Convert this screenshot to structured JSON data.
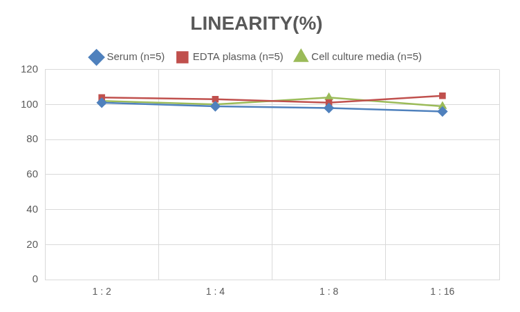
{
  "chart_data": {
    "type": "line",
    "title": "LINEARITY(%)",
    "categories": [
      "1 : 2",
      "1 : 4",
      "1 : 8",
      "1 : 16"
    ],
    "series": [
      {
        "name": "Serum (n=5)",
        "color": "#4f81bd",
        "marker": "diamond",
        "values": [
          101,
          99,
          98,
          96
        ]
      },
      {
        "name": "EDTA plasma (n=5)",
        "color": "#c0504d",
        "marker": "square",
        "values": [
          104,
          103,
          101,
          105
        ]
      },
      {
        "name": "Cell culture media (n=5)",
        "color": "#9bbb59",
        "marker": "triangle",
        "values": [
          102,
          100,
          104,
          99
        ]
      }
    ],
    "ylim": [
      0,
      120
    ],
    "yticks": [
      0,
      20,
      40,
      60,
      80,
      100,
      120
    ],
    "grid": true,
    "legend": "top"
  }
}
